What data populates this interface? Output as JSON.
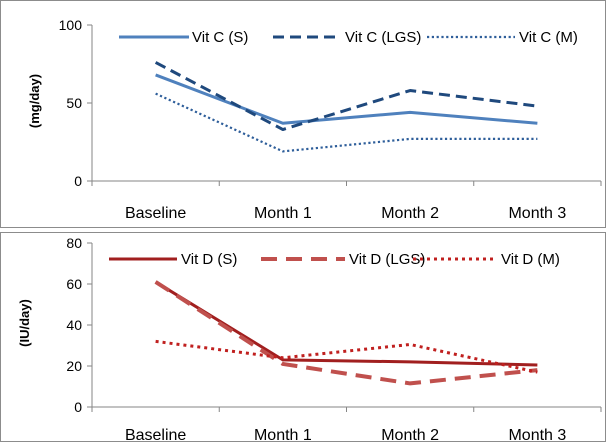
{
  "chart_data": [
    {
      "type": "line",
      "categories": [
        "Baseline",
        "Month 1",
        "Month 2",
        "Month 3"
      ],
      "ylabel": "(mg/day)",
      "ylim": [
        0,
        100
      ],
      "yticks": [
        0,
        50,
        100
      ],
      "grid": false,
      "legend_position": "top",
      "series": [
        {
          "name": "Vit C (S)",
          "values": [
            68,
            37,
            44,
            37
          ],
          "color": "#4f81bd",
          "dash": "solid"
        },
        {
          "name": "Vit C (LGS)",
          "values": [
            76,
            33,
            58,
            48
          ],
          "color": "#1f497d",
          "dash": "dashed"
        },
        {
          "name": "Vit C (M)",
          "values": [
            56,
            19,
            27,
            27
          ],
          "color": "#2e5e9a",
          "dash": "dotted"
        }
      ]
    },
    {
      "type": "line",
      "categories": [
        "Baseline",
        "Month 1",
        "Month 2",
        "Month 3"
      ],
      "ylabel": "(IU/day)",
      "ylim": [
        0,
        80
      ],
      "yticks": [
        0,
        20,
        40,
        60,
        80
      ],
      "grid": false,
      "legend_position": "top",
      "series": [
        {
          "name": "Vit D (S)",
          "values": [
            61,
            23,
            22,
            20.5
          ],
          "color": "#a11f1f",
          "dash": "solid"
        },
        {
          "name": "Vit D (LGS)",
          "values": [
            61,
            21,
            11.5,
            18
          ],
          "color": "#c0504d",
          "dash": "dashed"
        },
        {
          "name": "Vit D (M)",
          "values": [
            32,
            24,
            30.5,
            17
          ],
          "color": "#c0201f",
          "dash": "dotted"
        }
      ]
    }
  ]
}
